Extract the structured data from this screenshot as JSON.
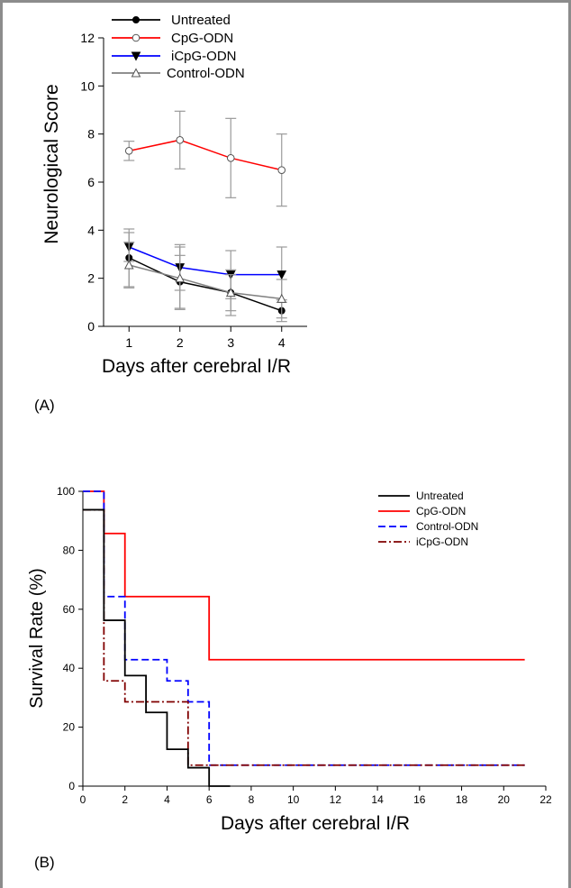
{
  "panels": {
    "a_label": "(A)",
    "b_label": "(B)"
  },
  "chart_data": [
    {
      "type": "line",
      "panel": "(A)",
      "xlabel": "Days after cerebral I/R",
      "ylabel": "Neurological Score",
      "x": [
        1,
        2,
        3,
        4
      ],
      "xticks": [
        "1",
        "2",
        "3",
        "4"
      ],
      "xlim": [
        0.5,
        4.5
      ],
      "ylim": [
        0,
        12
      ],
      "yticks": [
        0,
        2,
        4,
        6,
        8,
        10,
        12
      ],
      "legend_position": "top-left",
      "series": [
        {
          "name": "Untreated",
          "color": "#000000",
          "marker": "filled-circle",
          "values": [
            2.85,
            1.85,
            1.4,
            0.65
          ],
          "errors": [
            1.2,
            1.1,
            0.95,
            0.45
          ]
        },
        {
          "name": "CpG-ODN",
          "color": "#ff0000",
          "marker": "open-circle",
          "values": [
            7.3,
            7.75,
            7.0,
            6.5
          ],
          "errors": [
            0.4,
            1.2,
            1.65,
            1.5
          ]
        },
        {
          "name": "iCpG-ODN",
          "color": "#0000ff",
          "marker": "filled-triangle-down",
          "values": [
            3.3,
            2.45,
            2.15,
            2.15
          ],
          "errors": [
            0.6,
            0.95,
            1.0,
            1.15
          ]
        },
        {
          "name": "Control-ODN",
          "color": "#808080",
          "marker": "open-triangle-up",
          "values": [
            2.55,
            2.0,
            1.4,
            1.15
          ],
          "errors": [
            0.95,
            1.3,
            0.75,
            0.8
          ]
        }
      ]
    },
    {
      "type": "line",
      "subtype": "step",
      "panel": "(B)",
      "xlabel": "Days after cerebral I/R",
      "ylabel": "Survival Rate (%)",
      "xlim": [
        0,
        22
      ],
      "xticks": [
        0,
        2,
        4,
        6,
        8,
        10,
        12,
        14,
        16,
        18,
        20,
        22
      ],
      "ylim": [
        0,
        100
      ],
      "yticks": [
        0,
        20,
        40,
        60,
        80,
        100
      ],
      "legend_position": "top-right",
      "series": [
        {
          "name": "Untreated",
          "color": "#000000",
          "dash": "solid",
          "x": [
            0,
            1,
            2,
            3,
            4,
            5,
            6,
            7
          ],
          "values": [
            93.75,
            56.25,
            37.5,
            25,
            12.5,
            6.25,
            0,
            0
          ]
        },
        {
          "name": "CpG-ODN",
          "color": "#ff0000",
          "dash": "solid",
          "x": [
            0,
            1,
            2,
            6,
            21
          ],
          "values": [
            100,
            85.7,
            64.3,
            42.9,
            42.9
          ]
        },
        {
          "name": "Control-ODN",
          "color": "#0000ff",
          "dash": "dashed",
          "x": [
            0,
            1,
            2,
            4,
            5,
            6,
            21
          ],
          "values": [
            100,
            64.3,
            42.9,
            35.7,
            28.6,
            7.1,
            7.1
          ]
        },
        {
          "name": "iCpG-ODN",
          "color": "#800000",
          "dash": "dashdot",
          "x": [
            0,
            1,
            2,
            5,
            21
          ],
          "values": [
            93.75,
            35.7,
            28.6,
            7.1,
            7.1
          ]
        }
      ]
    }
  ]
}
